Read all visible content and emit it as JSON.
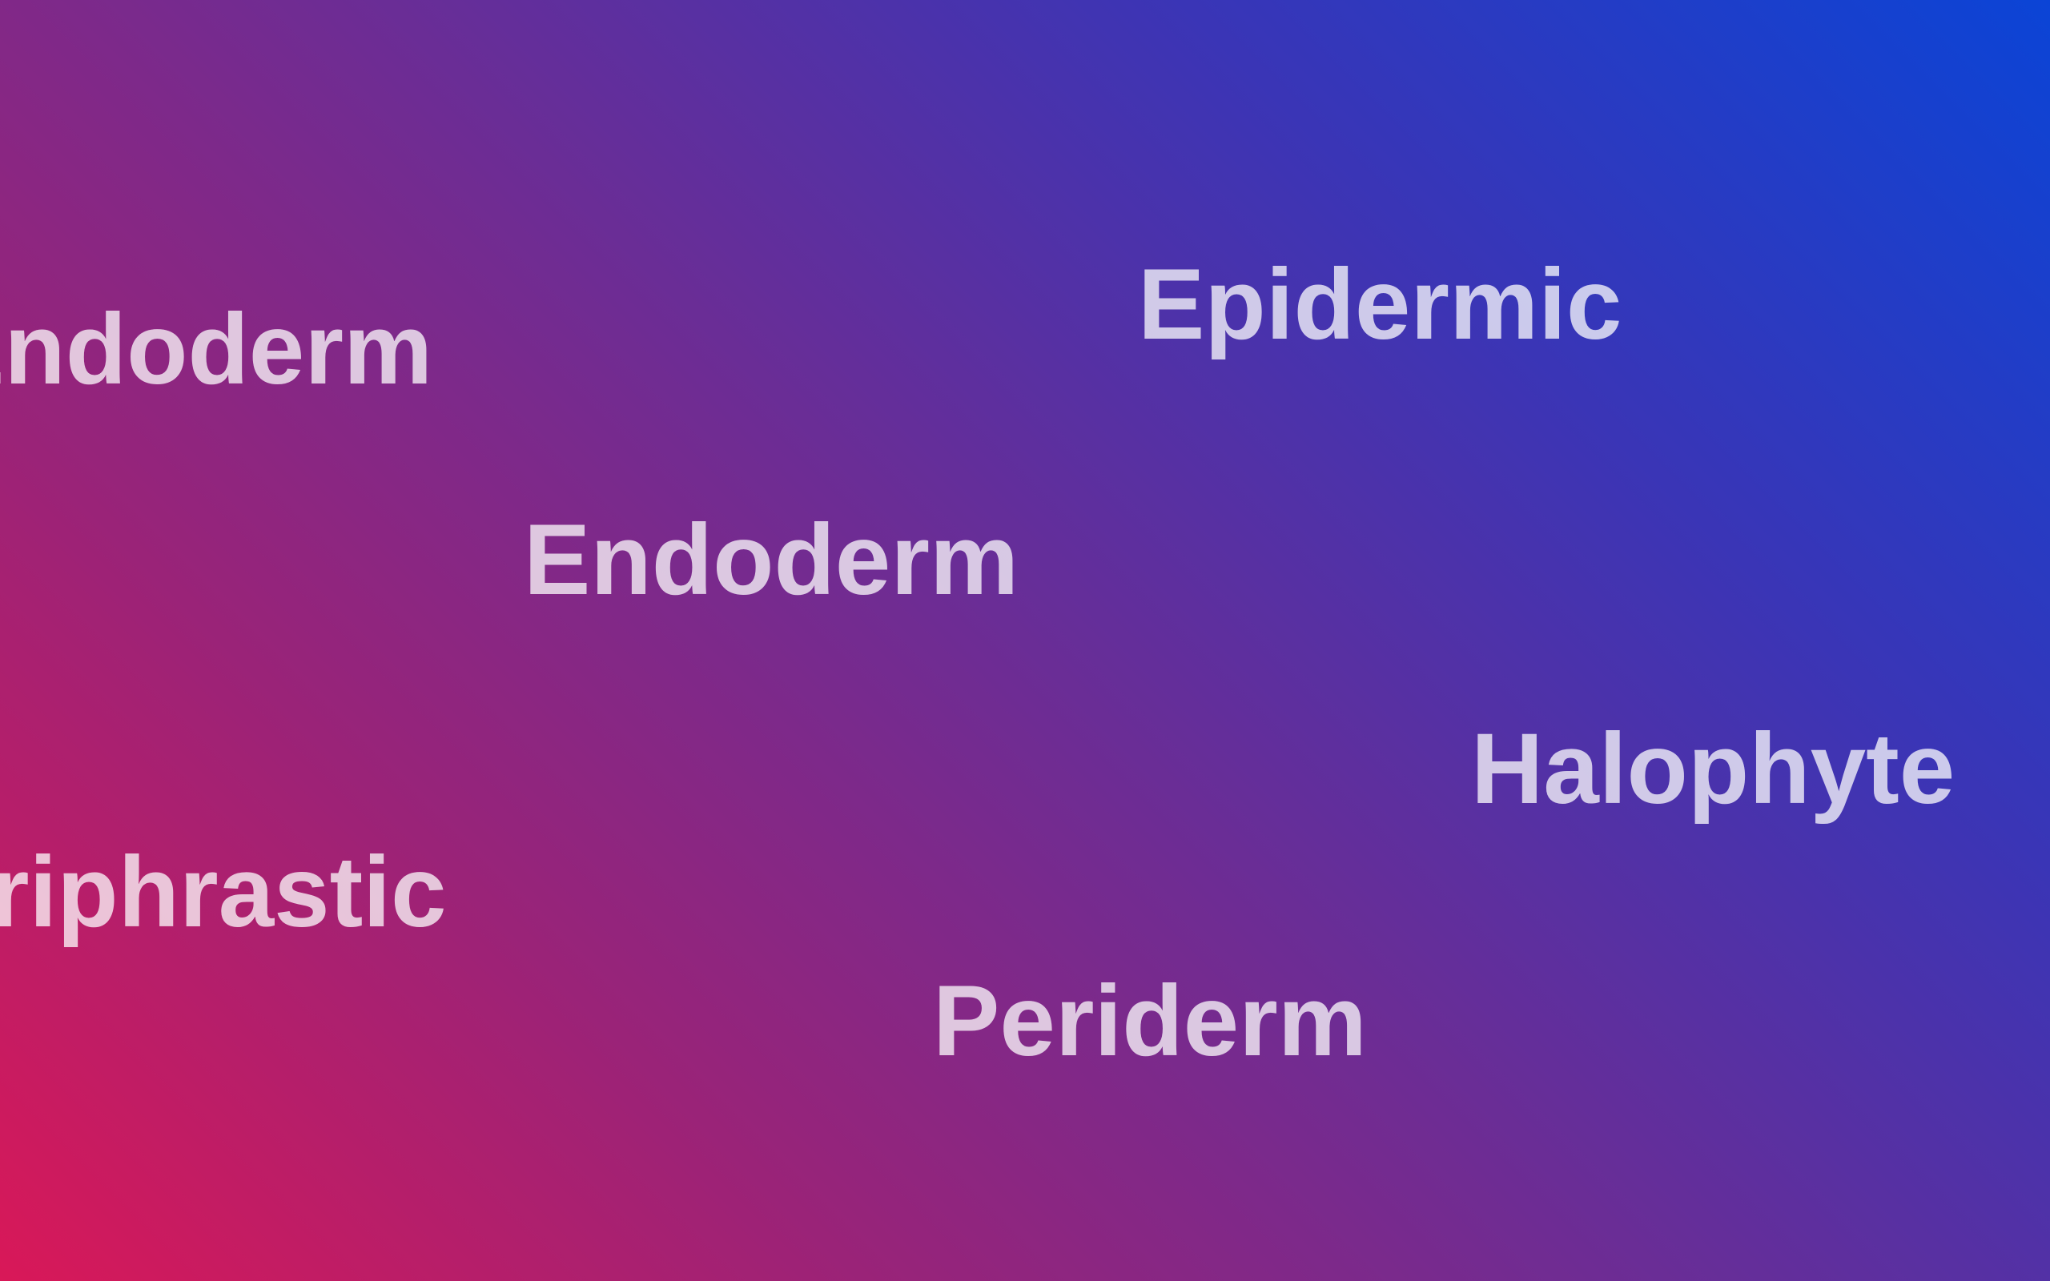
{
  "background": {
    "gradient_colors": [
      "#d91858",
      "#9a2378",
      "#6a2d96",
      "#3a35b6",
      "#0b44d6"
    ]
  },
  "words": [
    {
      "id": "endoderm-left",
      "text": "Endoderm"
    },
    {
      "id": "epidermic",
      "text": "Epidermic"
    },
    {
      "id": "endoderm",
      "text": "Endoderm"
    },
    {
      "id": "halophyte",
      "text": "Halophyte"
    },
    {
      "id": "periphrastic",
      "text": "Periphrastic"
    },
    {
      "id": "periderm",
      "text": "Periderm"
    }
  ],
  "text_color": "#ffffff"
}
